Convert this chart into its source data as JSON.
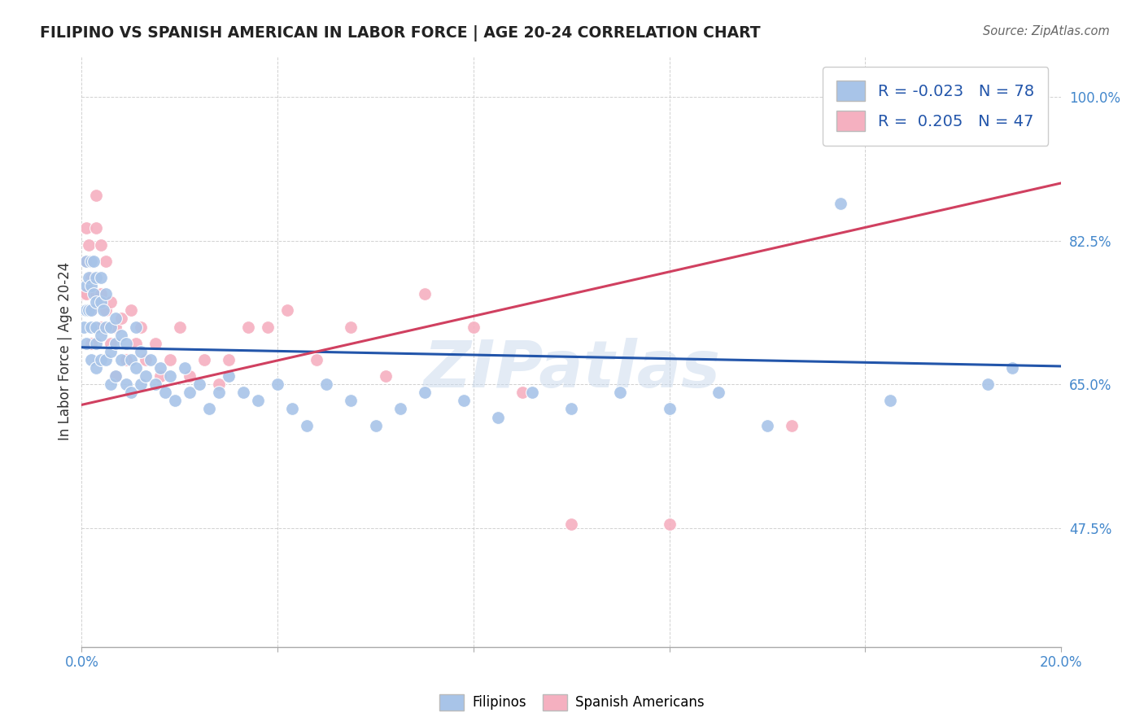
{
  "title": "FILIPINO VS SPANISH AMERICAN IN LABOR FORCE | AGE 20-24 CORRELATION CHART",
  "source": "Source: ZipAtlas.com",
  "ylabel": "In Labor Force | Age 20-24",
  "xlim": [
    0.0,
    0.2
  ],
  "ylim": [
    0.33,
    1.05
  ],
  "filipinos_R": "-0.023",
  "filipinos_N": "78",
  "spanish_R": "0.205",
  "spanish_N": "47",
  "filipinos_color": "#a8c4e8",
  "spanish_color": "#f5b0c0",
  "filipinos_line_color": "#2255aa",
  "spanish_line_color": "#d04060",
  "watermark_color": "#c8d8ec",
  "filipinos_x": [
    0.0005,
    0.001,
    0.001,
    0.001,
    0.001,
    0.0015,
    0.0015,
    0.002,
    0.002,
    0.002,
    0.002,
    0.002,
    0.0025,
    0.0025,
    0.003,
    0.003,
    0.003,
    0.003,
    0.003,
    0.004,
    0.004,
    0.004,
    0.004,
    0.0045,
    0.005,
    0.005,
    0.005,
    0.006,
    0.006,
    0.006,
    0.007,
    0.007,
    0.007,
    0.008,
    0.008,
    0.009,
    0.009,
    0.01,
    0.01,
    0.011,
    0.011,
    0.012,
    0.012,
    0.013,
    0.014,
    0.015,
    0.016,
    0.017,
    0.018,
    0.019,
    0.021,
    0.022,
    0.024,
    0.026,
    0.028,
    0.03,
    0.033,
    0.036,
    0.04,
    0.043,
    0.046,
    0.05,
    0.055,
    0.06,
    0.065,
    0.07,
    0.078,
    0.085,
    0.092,
    0.1,
    0.11,
    0.12,
    0.13,
    0.14,
    0.155,
    0.165,
    0.185,
    0.19
  ],
  "filipinos_y": [
    0.72,
    0.8,
    0.77,
    0.74,
    0.7,
    0.78,
    0.74,
    0.8,
    0.77,
    0.74,
    0.72,
    0.68,
    0.8,
    0.76,
    0.78,
    0.75,
    0.72,
    0.7,
    0.67,
    0.78,
    0.75,
    0.71,
    0.68,
    0.74,
    0.76,
    0.72,
    0.68,
    0.72,
    0.69,
    0.65,
    0.73,
    0.7,
    0.66,
    0.71,
    0.68,
    0.7,
    0.65,
    0.68,
    0.64,
    0.72,
    0.67,
    0.69,
    0.65,
    0.66,
    0.68,
    0.65,
    0.67,
    0.64,
    0.66,
    0.63,
    0.67,
    0.64,
    0.65,
    0.62,
    0.64,
    0.66,
    0.64,
    0.63,
    0.65,
    0.62,
    0.6,
    0.65,
    0.63,
    0.6,
    0.62,
    0.64,
    0.63,
    0.61,
    0.64,
    0.62,
    0.64,
    0.62,
    0.64,
    0.6,
    0.87,
    0.63,
    0.65,
    0.67
  ],
  "spanish_x": [
    0.0005,
    0.001,
    0.001,
    0.001,
    0.0015,
    0.002,
    0.002,
    0.002,
    0.003,
    0.003,
    0.003,
    0.004,
    0.004,
    0.004,
    0.005,
    0.005,
    0.006,
    0.006,
    0.007,
    0.007,
    0.008,
    0.009,
    0.01,
    0.011,
    0.012,
    0.013,
    0.015,
    0.016,
    0.018,
    0.02,
    0.022,
    0.025,
    0.028,
    0.03,
    0.034,
    0.038,
    0.042,
    0.048,
    0.055,
    0.062,
    0.07,
    0.08,
    0.09,
    0.1,
    0.12,
    0.145,
    0.19
  ],
  "spanish_y": [
    0.76,
    0.84,
    0.8,
    0.76,
    0.82,
    0.78,
    0.74,
    0.7,
    0.88,
    0.84,
    0.76,
    0.82,
    0.76,
    0.72,
    0.8,
    0.74,
    0.75,
    0.7,
    0.72,
    0.66,
    0.73,
    0.68,
    0.74,
    0.7,
    0.72,
    0.68,
    0.7,
    0.66,
    0.68,
    0.72,
    0.66,
    0.68,
    0.65,
    0.68,
    0.72,
    0.72,
    0.74,
    0.68,
    0.72,
    0.66,
    0.76,
    0.72,
    0.64,
    0.48,
    0.48,
    0.6,
    1.0
  ],
  "fil_line_x0": 0.0,
  "fil_line_x1": 0.2,
  "fil_line_y0": 0.695,
  "fil_line_y1": 0.672,
  "spa_line_x0": 0.0,
  "spa_line_x1": 0.2,
  "spa_line_y0": 0.625,
  "spa_line_y1": 0.895
}
